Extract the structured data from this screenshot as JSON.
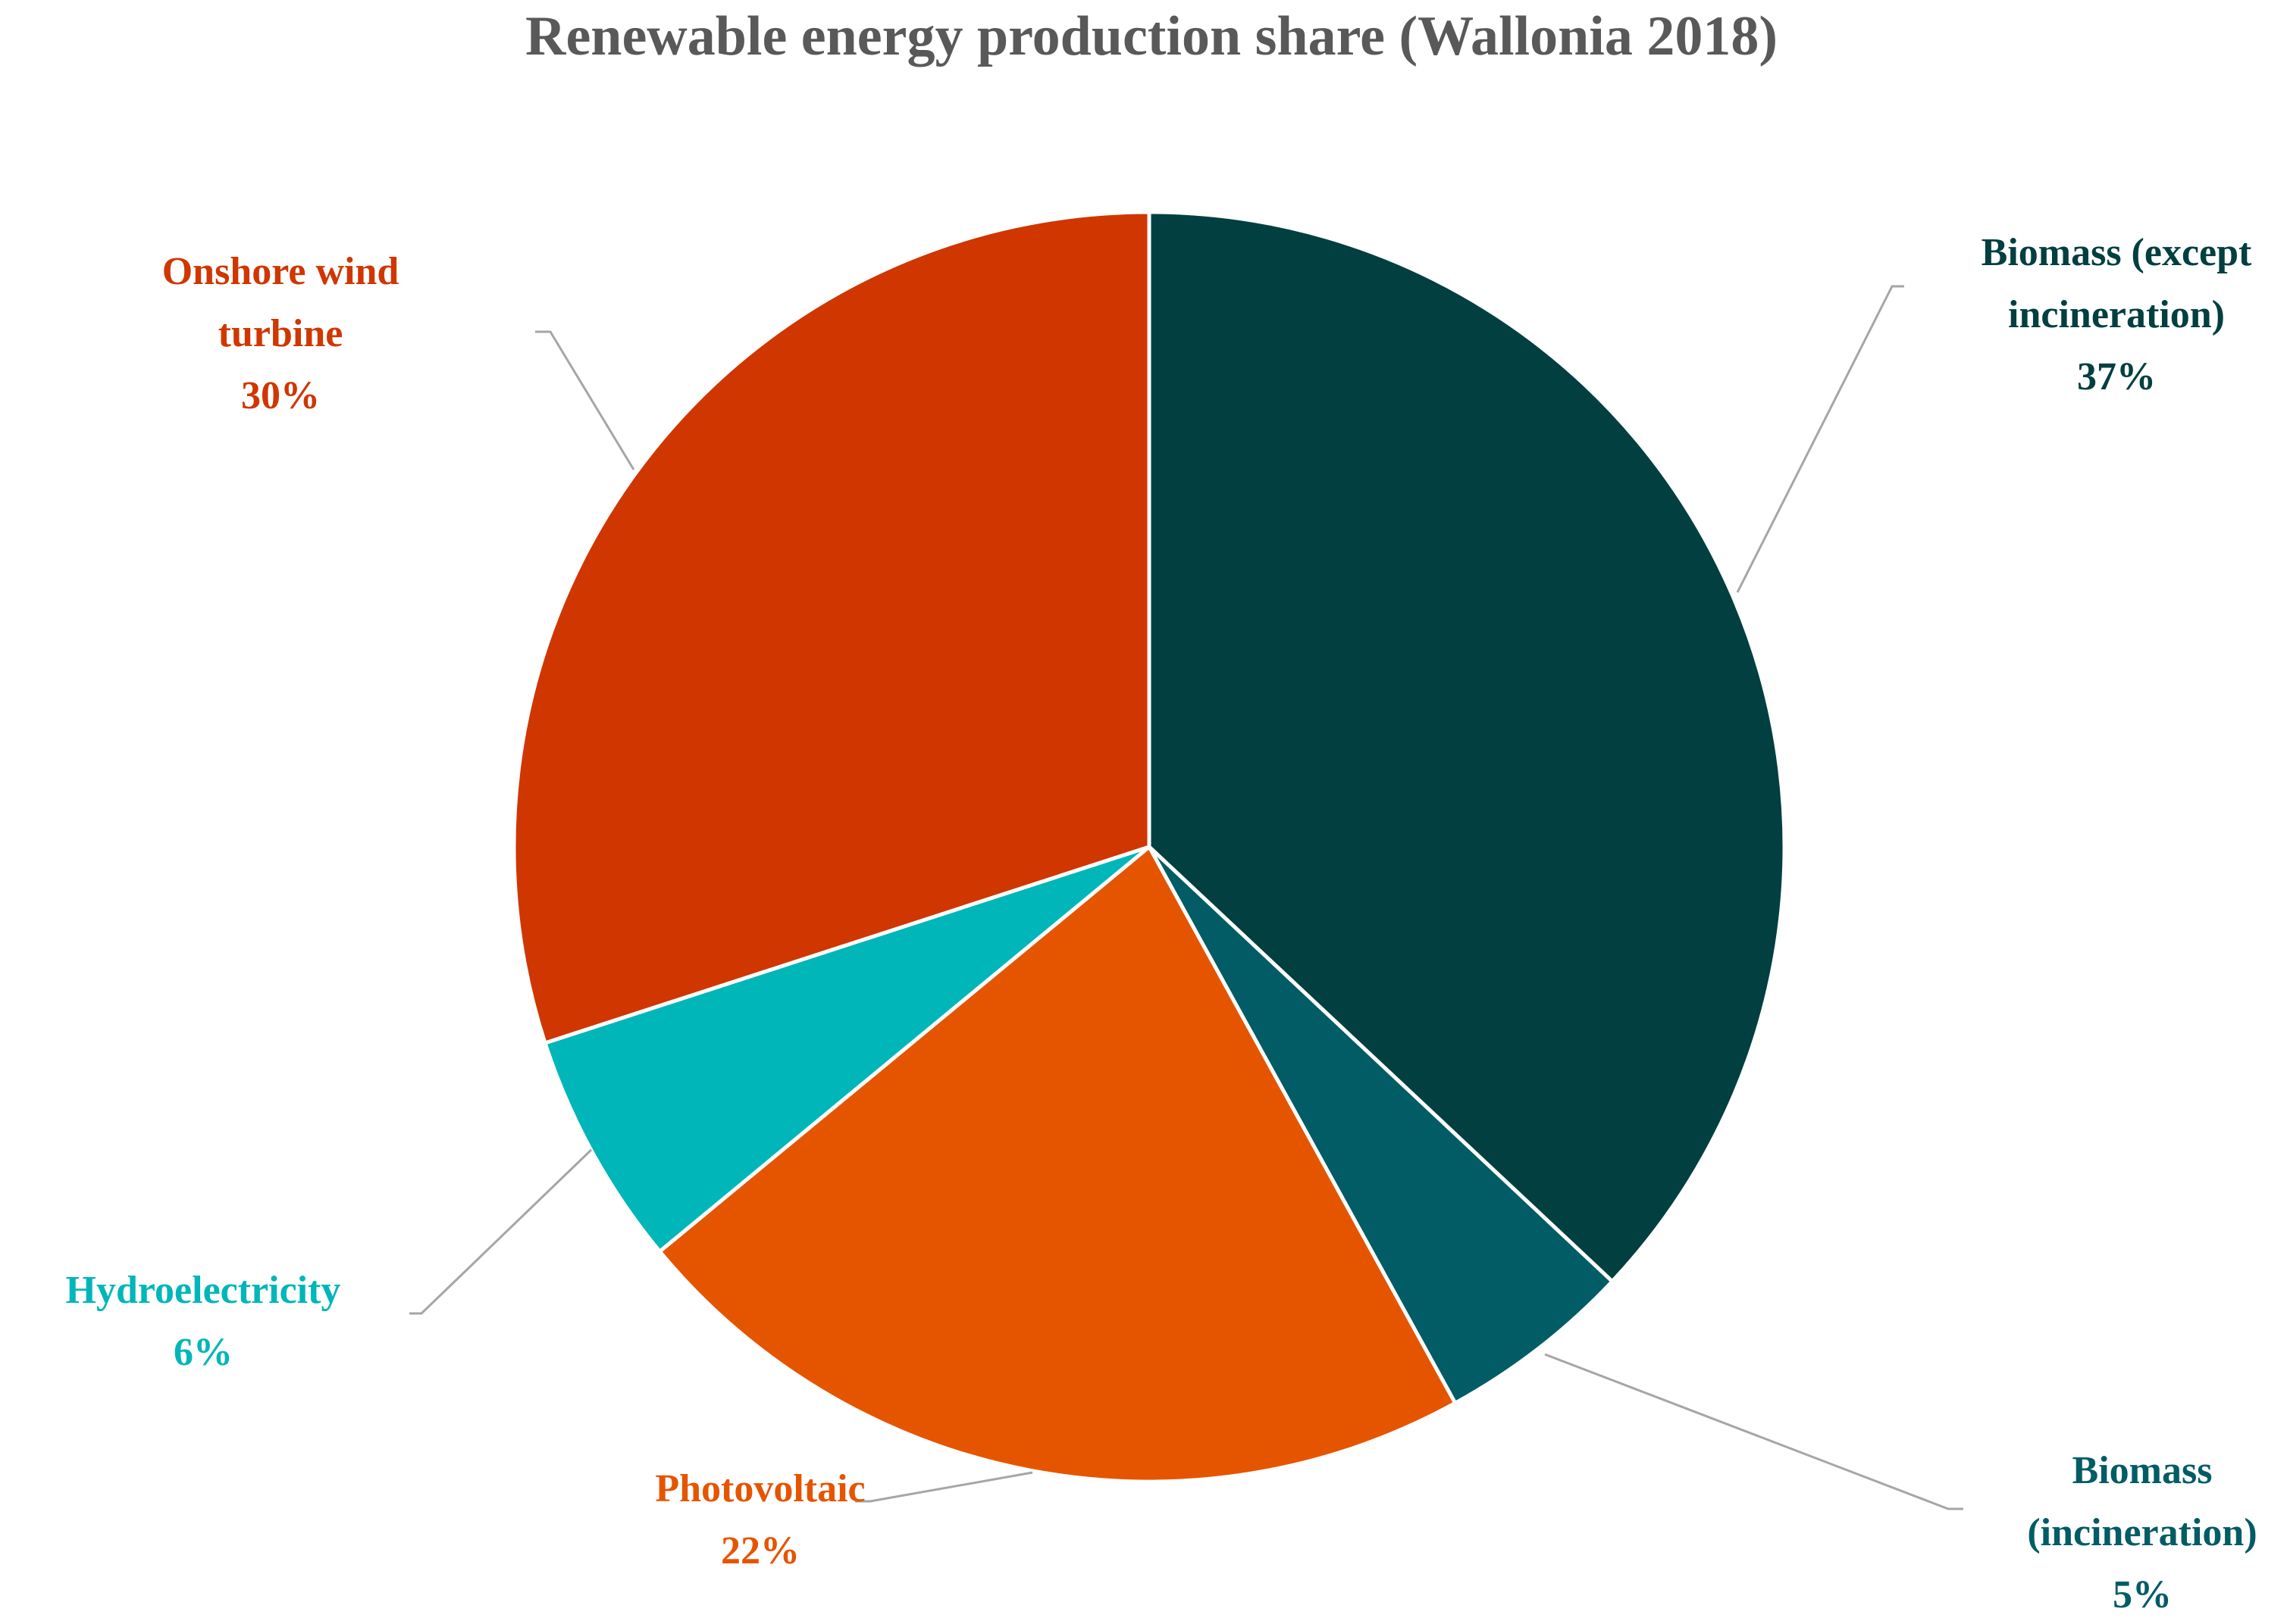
{
  "chart_data": {
    "type": "pie",
    "title": "Renewable energy production share (Wallonia 2018)",
    "unit": "%",
    "slices": [
      {
        "name": "Biomass (except incineration)",
        "label_lines": [
          "Biomass (except",
          "incineration)"
        ],
        "value": 37,
        "value_label": "37%",
        "color": "#023f40"
      },
      {
        "name": "Biomass (incineration)",
        "label_lines": [
          "Biomass",
          "(incineration)"
        ],
        "value": 5,
        "value_label": "5%",
        "color": "#025c66"
      },
      {
        "name": "Photovoltaic",
        "label_lines": [
          "Photovoltaic"
        ],
        "value": 22,
        "value_label": "22%",
        "color": "#e55500"
      },
      {
        "name": "Hydroelectricity",
        "label_lines": [
          "Hydroelectricity"
        ],
        "value": 6,
        "value_label": "6%",
        "color": "#01b6b9"
      },
      {
        "name": "Onshore wind turbine",
        "label_lines": [
          "Onshore wind",
          "turbine"
        ],
        "value": 30,
        "value_label": "30%",
        "color": "#d03600"
      }
    ],
    "label_colors": [
      "#023f40",
      "#025c66",
      "#e55500",
      "#01b6b9",
      "#d03600"
    ],
    "start_angle": "12 o'clock",
    "direction": "clockwise",
    "legend": "none"
  }
}
